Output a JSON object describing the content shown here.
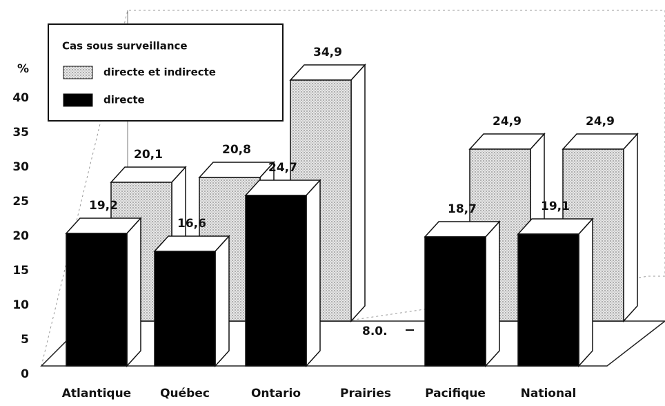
{
  "chart_data": {
    "type": "bar3d",
    "y_label": "%",
    "legend_title": "Cas sous surveillance",
    "categories": [
      "Atlantique",
      "Québec",
      "Ontario",
      "Prairies",
      "Pacifique",
      "National"
    ],
    "series": [
      {
        "name": "directe et indirecte",
        "color": "#cfcfcf",
        "values": [
          20.1,
          20.8,
          34.9,
          null,
          24.9,
          24.9
        ],
        "value_labels": [
          "20,1",
          "20,8",
          "34,9",
          null,
          "24,9",
          "24,9"
        ]
      },
      {
        "name": "directe",
        "color": "#000000",
        "values": [
          19.2,
          16.6,
          24.7,
          null,
          18.7,
          19.1
        ],
        "value_labels": [
          "19,2",
          "16,6",
          "24,7",
          null,
          "18,7",
          "19,1"
        ]
      }
    ],
    "annotation": "8.0.",
    "ylim": [
      0,
      40
    ],
    "yticks": [
      0,
      5,
      10,
      15,
      20,
      25,
      30,
      35,
      40
    ]
  }
}
